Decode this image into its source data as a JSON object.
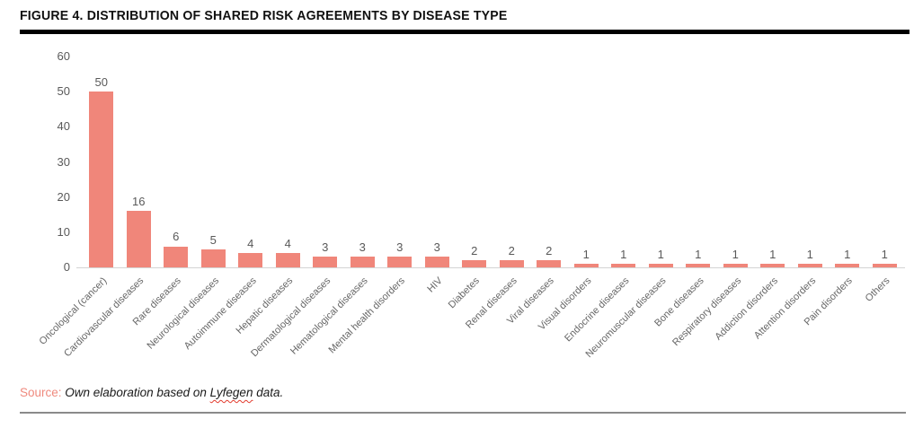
{
  "figure": {
    "title": "FIGURE 4. DISTRIBUTION OF SHARED RISK AGREEMENTS BY DISEASE TYPE"
  },
  "chart_data": {
    "type": "bar",
    "title": "FIGURE 4. DISTRIBUTION OF SHARED RISK AGREEMENTS BY DISEASE TYPE",
    "categories": [
      "Oncological (cancer)",
      "Cardiovascular diseases",
      "Rare diseases",
      "Neurological diseases",
      "Autoimmune diseases",
      "Hepatic diseases",
      "Dermatological diseases",
      "Hematological diseases",
      "Mental health disorders",
      "HIV",
      "Diabetes",
      "Renal diseases",
      "Viral diseases",
      "Visual disorders",
      "Endocrine diseases",
      "Neuromuscular diseases",
      "Bone diseases",
      "Respiratory diseases",
      "Addiction disorders",
      "Attention disorders",
      "Pain disorders",
      "Others"
    ],
    "values": [
      50,
      16,
      6,
      5,
      4,
      4,
      3,
      3,
      3,
      3,
      2,
      2,
      2,
      1,
      1,
      1,
      1,
      1,
      1,
      1,
      1,
      1
    ],
    "xlabel": "",
    "ylabel": "",
    "ylim": [
      0,
      60
    ],
    "yticks": [
      0,
      10,
      20,
      30,
      40,
      50,
      60
    ],
    "grid": false,
    "legend": "none",
    "data_labels": true,
    "bar_color": "#f0867a",
    "label_color": "#595959",
    "xlabel_rotation_deg": -45
  },
  "source": {
    "label": "Source:",
    "before": " Own elaboration based on ",
    "word": "Lyfegen",
    "after": " data."
  }
}
